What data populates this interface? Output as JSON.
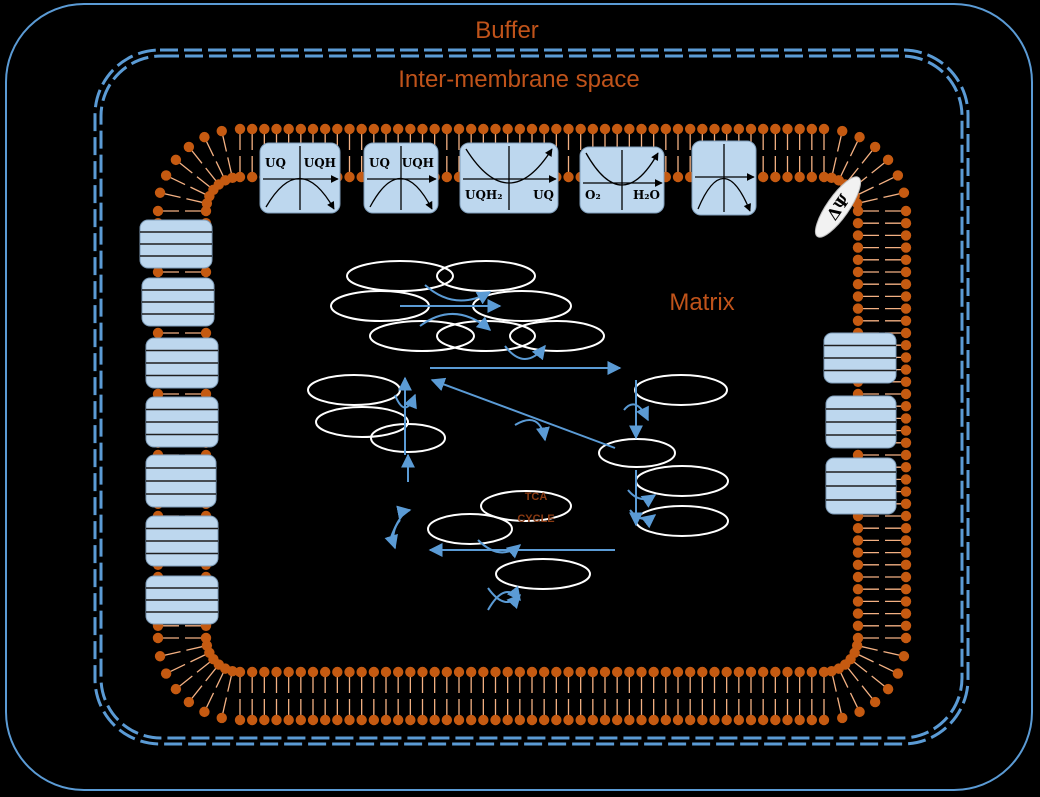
{
  "labels": {
    "buffer": "Buffer",
    "intermembrane": "Inter-membrane space",
    "matrix": "Matrix",
    "tca_line1": "TCA",
    "tca_line2": "CYCLE",
    "delta_psi": "ΔΨ"
  },
  "complexes": [
    {
      "left": "UQ",
      "right": "UQH",
      "shape": "hill"
    },
    {
      "left": "UQ",
      "right": "UQH",
      "shape": "hill"
    },
    {
      "left": "UQH₂",
      "right": "UQ",
      "shape": "valley"
    },
    {
      "left": "O₂",
      "right": "H₂O",
      "shape": "valley"
    },
    {
      "left": "",
      "right": "",
      "shape": "hill"
    }
  ],
  "colors": {
    "membrane_line": "#5b9bd5",
    "lipid_head": "#c55a11",
    "lipid_tail": "#f4b183",
    "protein_fill": "#bdd7ee",
    "label": "#c0531a",
    "arrow": "#5b9bd5",
    "background": "#000000"
  }
}
